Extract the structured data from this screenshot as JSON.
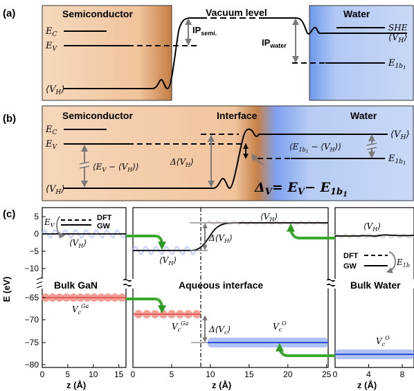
{
  "panels": {
    "a": {
      "tag": "(a)",
      "semiconductor": "Semiconductor",
      "vacuum": "Vacuum level",
      "water": "Water",
      "ec": "E",
      "ec_sub": "C",
      "ev": "E",
      "ev_sub": "V",
      "vh": "⟨V",
      "vh_sub": "H",
      "vh_close": "⟩",
      "ip_semi": "IP",
      "ip_semi_sub": "semi.",
      "ip_water": "IP",
      "ip_water_sub": "water",
      "she": "SHE",
      "e1b1": "E",
      "e1b1_sub": "1b",
      "e1b1_subsub": "1"
    },
    "b": {
      "tag": "(b)",
      "semiconductor": "Semiconductor",
      "interface": "Interface",
      "water": "Water",
      "diff_semi": "⟨E",
      "diff_semi_tail": "− ⟨V",
      "diff_water": "⟨E",
      "diff_water_tail": "− ⟨V",
      "delta_vh": "Δ⟨V",
      "delta_v": "Δ",
      "delta_v_sub": "V",
      "delta_v_eq": "= E",
      "delta_v_minus": "− E"
    },
    "c": {
      "tag": "(c)",
      "ylabel": "E (eV)",
      "xlabel": "z (Å)",
      "legend_dft": "DFT",
      "legend_gw": "GW",
      "bulk_gan": "Bulk GaN",
      "aqueous": "Aqueous interface",
      "bulk_water": "Bulk Water",
      "vc_ga": "V",
      "vc_ga_sub": "c",
      "vc_ga_sup": "Ga",
      "vc_o_sup": "O",
      "delta_vc": "Δ⟨V",
      "delta_vc_sub": "c",
      "yticks_upper": [
        "5",
        "0",
        "−5",
        "−10"
      ],
      "yticks_lower": [
        "−65",
        "−70",
        "−75",
        "−80"
      ],
      "xticks_left": [
        "0",
        "5",
        "10",
        "15"
      ],
      "xticks_mid": [
        "0",
        "5",
        "10",
        "15",
        "20",
        "25"
      ],
      "xticks_right": [
        "0",
        "4",
        "8"
      ]
    }
  },
  "colors": {
    "semiconductor": "#f2c9a4",
    "semi_edge": "#c9874f",
    "water": "#b5ccf2",
    "water_edge": "#7fa4ee",
    "arrow_green": "#3aa82e",
    "ga_points": "#f07d72",
    "o_points": "#6b8ae8",
    "gray_arrow": "#7a7a7a"
  }
}
